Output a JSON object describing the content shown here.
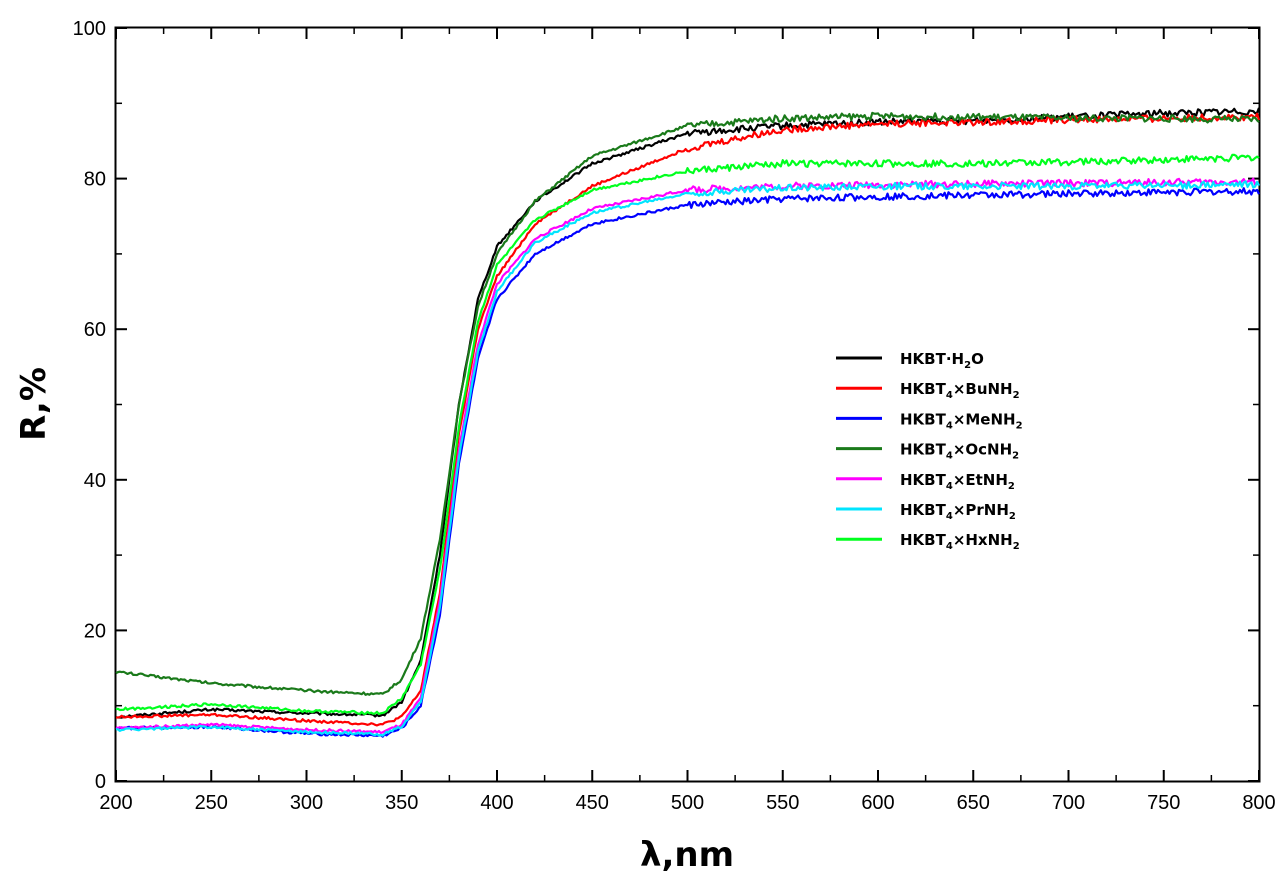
{
  "chart_data": {
    "type": "line",
    "title": "",
    "xlabel": "λ,nm",
    "ylabel": "R,%",
    "xlim": [
      200,
      800
    ],
    "ylim": [
      0,
      100
    ],
    "xticks": [
      200,
      250,
      300,
      350,
      400,
      450,
      500,
      550,
      600,
      650,
      700,
      750,
      800
    ],
    "yticks": [
      0,
      20,
      40,
      60,
      80,
      100
    ],
    "grid": false,
    "legend_position": "center-right",
    "series": [
      {
        "name": "HKBT·H2O",
        "legend_base": "HKBT·H",
        "legend_sub": "2",
        "legend_tail": "O",
        "color": "#000000",
        "x": [
          200,
          250,
          300,
          340,
          350,
          360,
          370,
          380,
          390,
          400,
          420,
          450,
          500,
          550,
          600,
          650,
          700,
          750,
          800
        ],
        "y": [
          8.5,
          9.5,
          9.0,
          8.7,
          10.5,
          16.0,
          30.0,
          50.0,
          64.0,
          71.0,
          77.0,
          82.0,
          86.0,
          87.0,
          87.5,
          87.7,
          88.2,
          88.7,
          89.0
        ]
      },
      {
        "name": "HKBT4×BuNH2",
        "legend_base": "HKBT",
        "legend_sub": "4",
        "legend_tail": "×BuNH",
        "legend_sub2": "2",
        "color": "#ff0000",
        "x": [
          200,
          250,
          300,
          340,
          350,
          360,
          370,
          380,
          390,
          400,
          420,
          450,
          500,
          550,
          600,
          650,
          700,
          750,
          800
        ],
        "y": [
          8.5,
          8.8,
          8.0,
          7.5,
          8.5,
          12.0,
          25.0,
          46.0,
          60.0,
          67.0,
          74.0,
          79.0,
          84.0,
          86.5,
          87.3,
          87.5,
          87.8,
          88.0,
          88.2
        ]
      },
      {
        "name": "HKBT4×MeNH2",
        "legend_base": "HKBT",
        "legend_sub": "4",
        "legend_tail": "×MeNH",
        "legend_sub2": "2",
        "color": "#0000ff",
        "x": [
          200,
          250,
          300,
          340,
          350,
          360,
          370,
          380,
          390,
          400,
          420,
          450,
          500,
          550,
          600,
          650,
          700,
          750,
          800
        ],
        "y": [
          7.0,
          7.2,
          6.3,
          6.0,
          7.0,
          10.0,
          22.0,
          42.0,
          56.0,
          64.0,
          70.0,
          74.0,
          76.5,
          77.3,
          77.6,
          77.8,
          78.0,
          78.2,
          78.3
        ]
      },
      {
        "name": "HKBT4×OcNH2",
        "legend_base": "HKBT",
        "legend_sub": "4",
        "legend_tail": "×OcNH",
        "legend_sub2": "2",
        "color": "#1a7a1a",
        "x": [
          200,
          250,
          300,
          340,
          350,
          360,
          370,
          380,
          390,
          400,
          420,
          450,
          500,
          550,
          600,
          650,
          700,
          750,
          800
        ],
        "y": [
          14.5,
          13.0,
          12.0,
          11.5,
          13.5,
          19.0,
          32.0,
          50.0,
          63.0,
          70.0,
          77.0,
          83.0,
          87.0,
          88.0,
          88.3,
          88.2,
          88.0,
          88.0,
          87.8
        ]
      },
      {
        "name": "HKBT4×EtNH2",
        "legend_base": "HKBT",
        "legend_sub": "4",
        "legend_tail": "×EtNH",
        "legend_sub2": "2",
        "color": "#ff00ff",
        "x": [
          200,
          250,
          300,
          340,
          350,
          360,
          370,
          380,
          390,
          400,
          420,
          450,
          500,
          550,
          600,
          650,
          700,
          750,
          800
        ],
        "y": [
          7.0,
          7.5,
          6.8,
          6.5,
          7.5,
          11.0,
          24.0,
          44.0,
          58.0,
          66.0,
          72.0,
          76.0,
          78.5,
          79.0,
          79.2,
          79.3,
          79.4,
          79.5,
          79.6
        ]
      },
      {
        "name": "HKBT4×PrNH2",
        "legend_base": "HKBT",
        "legend_sub": "4",
        "legend_tail": "×PrNH",
        "legend_sub2": "2",
        "color": "#00e5ff",
        "x": [
          200,
          250,
          300,
          340,
          350,
          360,
          370,
          380,
          390,
          400,
          420,
          450,
          500,
          550,
          600,
          650,
          700,
          750,
          800
        ],
        "y": [
          6.8,
          7.2,
          6.5,
          6.2,
          7.2,
          10.5,
          23.0,
          43.0,
          57.0,
          65.0,
          71.5,
          75.5,
          78.0,
          78.8,
          79.0,
          79.0,
          79.0,
          79.1,
          79.2
        ]
      },
      {
        "name": "HKBT4×HxNH2",
        "legend_base": "HKBT",
        "legend_sub": "4",
        "legend_tail": "×HxNH",
        "legend_sub2": "2",
        "color": "#00ff1e",
        "x": [
          200,
          250,
          300,
          340,
          350,
          360,
          370,
          380,
          390,
          400,
          420,
          450,
          500,
          550,
          600,
          650,
          700,
          750,
          800
        ],
        "y": [
          9.5,
          10.2,
          9.3,
          9.0,
          11.0,
          15.5,
          28.0,
          47.0,
          61.0,
          68.5,
          74.5,
          78.5,
          81.0,
          82.0,
          82.0,
          82.0,
          82.2,
          82.5,
          82.8
        ]
      }
    ]
  }
}
